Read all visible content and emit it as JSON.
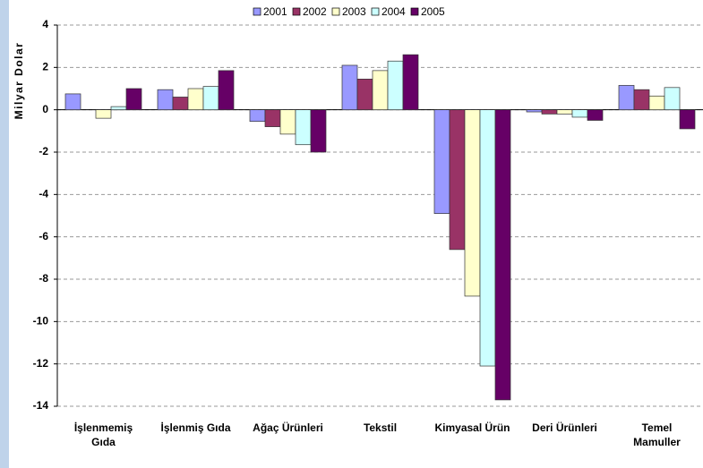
{
  "chart_data": {
    "type": "bar",
    "y_label": "Milyar Dolar",
    "categories": [
      "İşlenmemiş\nGıda",
      "İşlenmiş Gıda",
      "Ağaç Ürünleri",
      "Tekstil",
      "Kimyasal Ürün",
      "Deri Ürünleri",
      "Temel\nMamuller"
    ],
    "series": [
      {
        "name": "2001",
        "color": "#9999ff",
        "values": [
          0.75,
          0.95,
          -0.55,
          2.1,
          -4.9,
          -0.1,
          1.15
        ]
      },
      {
        "name": "2002",
        "color": "#993366",
        "values": [
          0,
          0.6,
          -0.8,
          1.45,
          -6.6,
          -0.2,
          0.95
        ]
      },
      {
        "name": "2003",
        "color": "#ffffcc",
        "values": [
          -0.4,
          1.0,
          -1.15,
          1.85,
          -8.8,
          -0.2,
          0.65
        ]
      },
      {
        "name": "2004",
        "color": "#ccffff",
        "values": [
          0.15,
          1.1,
          -1.65,
          2.3,
          -12.1,
          -0.35,
          1.05
        ]
      },
      {
        "name": "2005",
        "color": "#660066",
        "values": [
          1.0,
          1.85,
          -2.0,
          2.6,
          -13.7,
          -0.5,
          -0.9
        ]
      }
    ],
    "ylim": [
      -14,
      4
    ],
    "yticks": [
      -14,
      -12,
      -10,
      -8,
      -6,
      -4,
      -2,
      0,
      2,
      4
    ],
    "grid": true,
    "legend": "top"
  }
}
